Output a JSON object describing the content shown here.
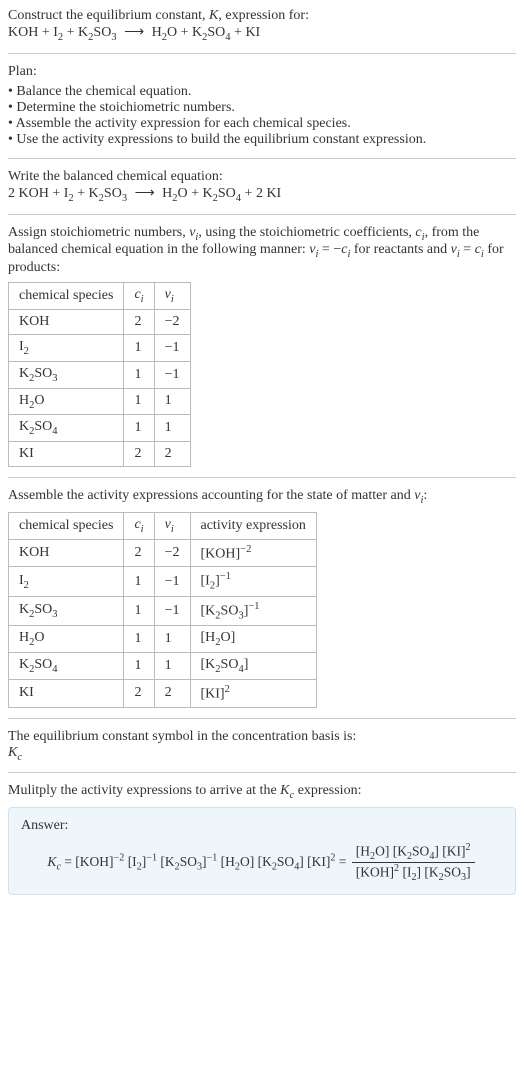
{
  "intro": {
    "line1": "Construct the equilibrium constant, ",
    "kvar": "K",
    "line1b": ", expression for:",
    "equation_html": "KOH + I<sub>2</sub> + K<sub>2</sub>SO<sub>3</sub> <span class='arrow'>⟶</span> H<sub>2</sub>O + K<sub>2</sub>SO<sub>4</sub> + KI"
  },
  "plan": {
    "title": "Plan:",
    "items": [
      "Balance the chemical equation.",
      "Determine the stoichiometric numbers.",
      "Assemble the activity expression for each chemical species.",
      "Use the activity expressions to build the equilibrium constant expression."
    ]
  },
  "balanced": {
    "title": "Write the balanced chemical equation:",
    "equation_html": "2 KOH + I<sub>2</sub> + K<sub>2</sub>SO<sub>3</sub> <span class='arrow'>⟶</span> H<sub>2</sub>O + K<sub>2</sub>SO<sub>4</sub> + 2 KI"
  },
  "assign": {
    "text_html": "Assign stoichiometric numbers, <span class='italic'>ν<sub>i</sub></span>, using the stoichiometric coefficients, <span class='italic'>c<sub>i</sub></span>, from the balanced chemical equation in the following manner: <span class='italic'>ν<sub>i</sub></span> = −<span class='italic'>c<sub>i</sub></span> for reactants and <span class='italic'>ν<sub>i</sub></span> = <span class='italic'>c<sub>i</sub></span> for products:",
    "table": {
      "headers_html": [
        "chemical species",
        "<span class='italic'>c<sub>i</sub></span>",
        "<span class='italic'>ν<sub>i</sub></span>"
      ],
      "rows_html": [
        [
          "KOH",
          "2",
          "−2"
        ],
        [
          "I<sub>2</sub>",
          "1",
          "−1"
        ],
        [
          "K<sub>2</sub>SO<sub>3</sub>",
          "1",
          "−1"
        ],
        [
          "H<sub>2</sub>O",
          "1",
          "1"
        ],
        [
          "K<sub>2</sub>SO<sub>4</sub>",
          "1",
          "1"
        ],
        [
          "KI",
          "2",
          "2"
        ]
      ]
    }
  },
  "assemble": {
    "text_html": "Assemble the activity expressions accounting for the state of matter and <span class='italic'>ν<sub>i</sub></span>:",
    "table": {
      "headers_html": [
        "chemical species",
        "<span class='italic'>c<sub>i</sub></span>",
        "<span class='italic'>ν<sub>i</sub></span>",
        "activity expression"
      ],
      "rows_html": [
        [
          "KOH",
          "2",
          "−2",
          "[KOH]<sup>−2</sup>"
        ],
        [
          "I<sub>2</sub>",
          "1",
          "−1",
          "[I<sub>2</sub>]<sup>−1</sup>"
        ],
        [
          "K<sub>2</sub>SO<sub>3</sub>",
          "1",
          "−1",
          "[K<sub>2</sub>SO<sub>3</sub>]<sup>−1</sup>"
        ],
        [
          "H<sub>2</sub>O",
          "1",
          "1",
          "[H<sub>2</sub>O]"
        ],
        [
          "K<sub>2</sub>SO<sub>4</sub>",
          "1",
          "1",
          "[K<sub>2</sub>SO<sub>4</sub>]"
        ],
        [
          "KI",
          "2",
          "2",
          "[KI]<sup>2</sup>"
        ]
      ]
    }
  },
  "eqconst": {
    "text": "The equilibrium constant symbol in the concentration basis is:",
    "symbol_html": "<span class='italic'>K<sub>c</sub></span>"
  },
  "multiply": {
    "text_html": "Mulitply the activity expressions to arrive at the <span class='italic'>K<sub>c</sub></span> expression:"
  },
  "answer": {
    "label": "Answer:",
    "lhs_html": "<span class='italic'>K<sub>c</sub></span> = [KOH]<sup>−2</sup> [I<sub>2</sub>]<sup>−1</sup> [K<sub>2</sub>SO<sub>3</sub>]<sup>−1</sup> [H<sub>2</sub>O] [K<sub>2</sub>SO<sub>4</sub>] [KI]<sup>2</sup> = ",
    "frac_num_html": "[H<sub>2</sub>O] [K<sub>2</sub>SO<sub>4</sub>] [KI]<sup>2</sup>",
    "frac_den_html": "[KOH]<sup>2</sup> [I<sub>2</sub>] [K<sub>2</sub>SO<sub>3</sub>]"
  },
  "colors": {
    "answer_bg": "#eef6fb",
    "answer_border": "#cfe3ef",
    "table_border": "#bbbbbb",
    "hr": "#cccccc",
    "text": "#333333"
  }
}
